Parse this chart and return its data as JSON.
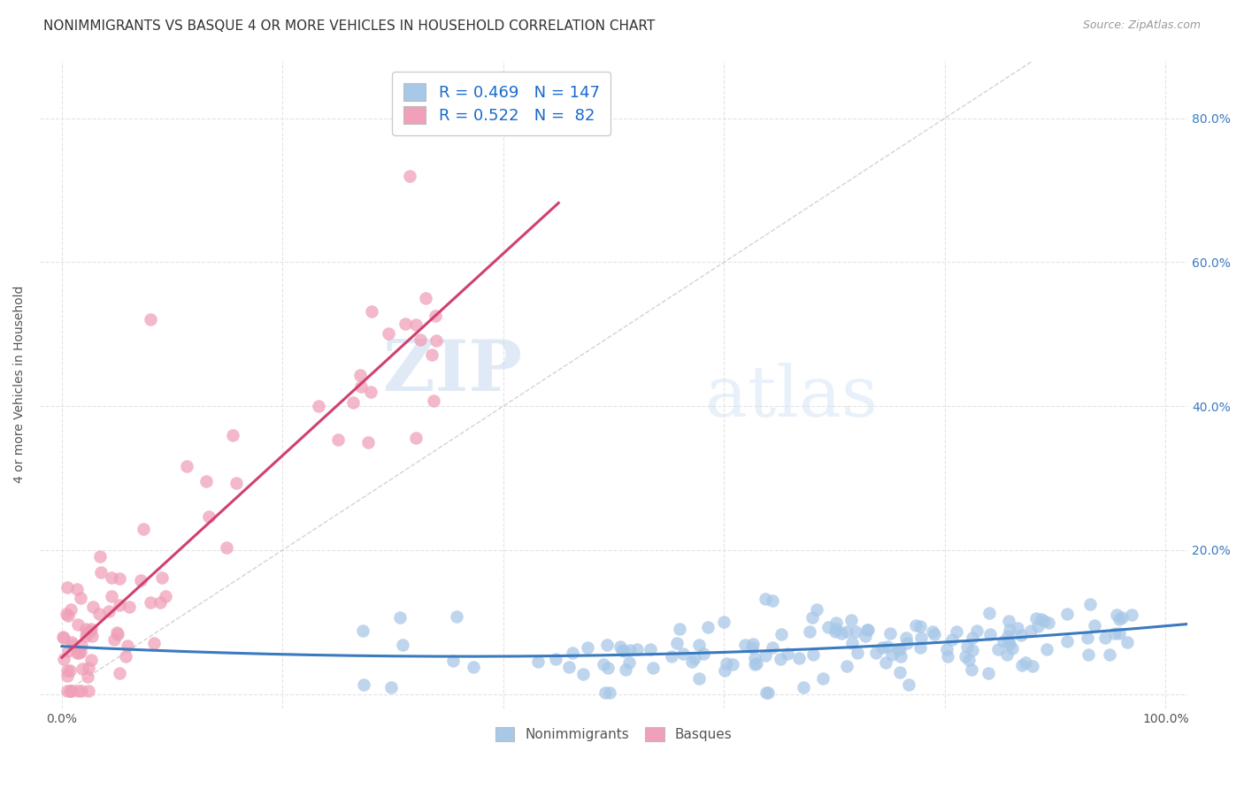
{
  "title": "NONIMMIGRANTS VS BASQUE 4 OR MORE VEHICLES IN HOUSEHOLD CORRELATION CHART",
  "source": "Source: ZipAtlas.com",
  "ylabel": "4 or more Vehicles in Household",
  "xlim": [
    -0.02,
    1.02
  ],
  "ylim": [
    -0.02,
    0.88
  ],
  "yticks": [
    0.0,
    0.2,
    0.4,
    0.6,
    0.8
  ],
  "right_ytick_labels": [
    "",
    "20.0%",
    "40.0%",
    "60.0%",
    "80.0%"
  ],
  "xticks": [
    0.0,
    0.2,
    0.4,
    0.6,
    0.8,
    1.0
  ],
  "xtick_labels": [
    "0.0%",
    "",
    "",
    "",
    "",
    "100.0%"
  ],
  "nonimmigrant_color": "#a8c8e8",
  "basque_color": "#f0a0b8",
  "nonimmigrant_line_color": "#3a7abf",
  "basque_line_color": "#d04070",
  "reference_line_color": "#c8c8c8",
  "legend_R1": "0.469",
  "legend_N1": "147",
  "legend_R2": "0.522",
  "legend_N2": "82",
  "watermark_zip": "ZIP",
  "watermark_atlas": "atlas",
  "background_color": "#ffffff",
  "grid_color": "#e4e4e4",
  "title_fontsize": 11,
  "axis_label_fontsize": 10,
  "tick_fontsize": 10,
  "legend_fontsize": 13,
  "seed": 42,
  "nonimmigrant_n": 147,
  "basque_n": 82
}
